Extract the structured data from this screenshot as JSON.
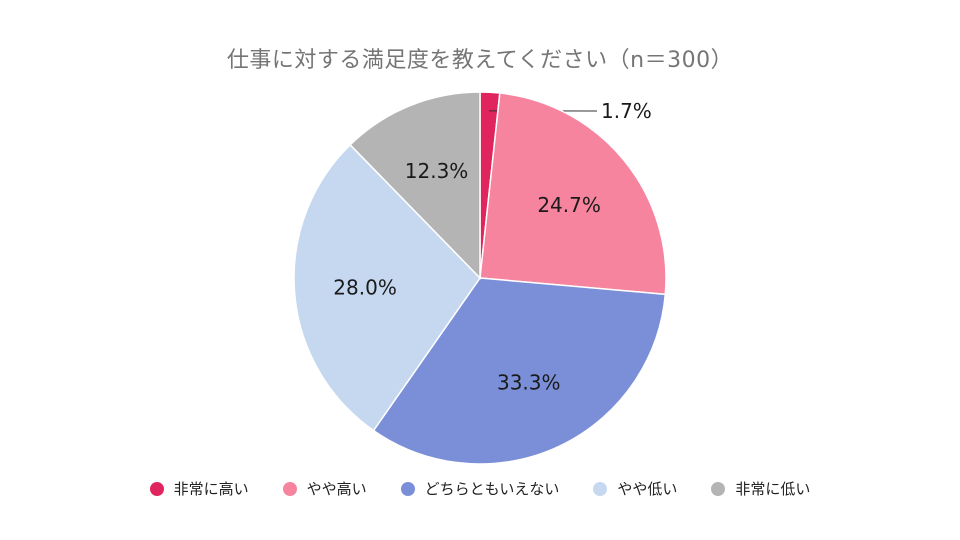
{
  "chart_data": {
    "type": "pie",
    "title": "仕事に対する満足度を教えてください（n＝300）",
    "slices": [
      {
        "label": "非常に高い",
        "value": 1.7,
        "value_label": "1.7%",
        "color": "#e0245e"
      },
      {
        "label": "やや高い",
        "value": 24.7,
        "value_label": "24.7%",
        "color": "#f7849f"
      },
      {
        "label": "どちらともいえない",
        "value": 33.3,
        "value_label": "33.3%",
        "color": "#7b8fd8"
      },
      {
        "label": "やや低い",
        "value": 28.0,
        "value_label": "28.0%",
        "color": "#c5d8f0"
      },
      {
        "label": "非常に低い",
        "value": 12.3,
        "value_label": "12.3%",
        "color": "#b4b4b4"
      }
    ],
    "legend_position": "bottom"
  }
}
